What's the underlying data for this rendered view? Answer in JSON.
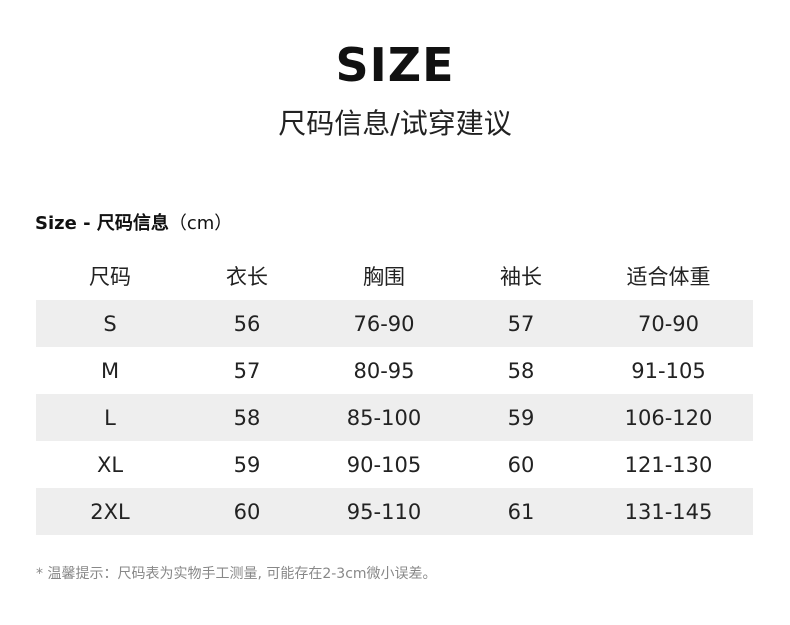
{
  "title": "SIZE",
  "subtitle": "尺码信息/试穿建议",
  "section": {
    "label": "Size - 尺码信息",
    "unit": "（cm）"
  },
  "table": {
    "headers": [
      "尺码",
      "衣长",
      "胸围",
      "袖长",
      "适合体重"
    ],
    "rows": [
      [
        "S",
        "56",
        "76-90",
        "57",
        "70-90"
      ],
      [
        "M",
        "57",
        "80-95",
        "58",
        "91-105"
      ],
      [
        "L",
        "58",
        "85-100",
        "59",
        "106-120"
      ],
      [
        "XL",
        "59",
        "90-105",
        "60",
        "121-130"
      ],
      [
        "2XL",
        "60",
        "95-110",
        "61",
        "131-145"
      ]
    ],
    "shaded_row_color": "#eeeeee"
  },
  "note": "* 温馨提示：尺码表为实物手工测量, 可能存在2-3cm微小误差。"
}
